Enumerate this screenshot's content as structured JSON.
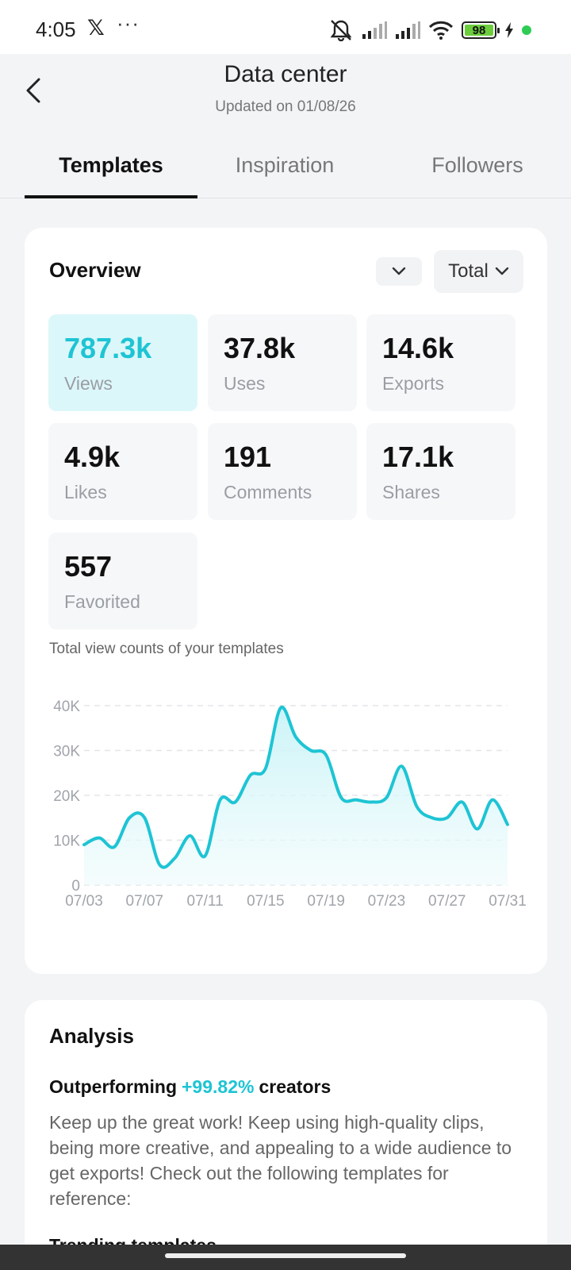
{
  "status_bar": {
    "time": "4:05",
    "x_logo": "𝕏",
    "more": "···",
    "battery_level": "98",
    "icons": [
      "mute-icon",
      "signal-icon",
      "signal-icon",
      "wifi-icon",
      "battery-icon",
      "charging-icon"
    ]
  },
  "header": {
    "title": "Data center",
    "subtitle": "Updated on 01/08/26"
  },
  "tabs": [
    {
      "label": "Templates",
      "active": true
    },
    {
      "label": "Inspiration",
      "active": false
    },
    {
      "label": "Followers",
      "active": false
    }
  ],
  "overview": {
    "title": "Overview",
    "filter_total": "Total",
    "metrics": [
      {
        "value": "787.3k",
        "label": "Views",
        "active": true
      },
      {
        "value": "37.8k",
        "label": "Uses",
        "active": false
      },
      {
        "value": "14.6k",
        "label": "Exports",
        "active": false
      },
      {
        "value": "4.9k",
        "label": "Likes",
        "active": false
      },
      {
        "value": "191",
        "label": "Comments",
        "active": false
      },
      {
        "value": "17.1k",
        "label": "Shares",
        "active": false
      },
      {
        "value": "557",
        "label": "Favorited",
        "active": false
      }
    ],
    "chart_caption": "Total view counts of your templates"
  },
  "chart_data": {
    "type": "area",
    "title": "",
    "xlabel": "",
    "ylabel": "",
    "ylim": [
      0,
      40000
    ],
    "y_ticks": [
      "0",
      "10K",
      "20K",
      "30K",
      "40K"
    ],
    "y_tick_values": [
      0,
      10000,
      20000,
      30000,
      40000
    ],
    "x_ticks": [
      "07/03",
      "07/07",
      "07/11",
      "07/15",
      "07/19",
      "07/23",
      "07/27",
      "07/31"
    ],
    "grid": true,
    "color": "#1ec4d4",
    "series": [
      {
        "x": [
          "07/03",
          "07/04",
          "07/05",
          "07/06",
          "07/07",
          "07/08",
          "07/09",
          "07/10",
          "07/11",
          "07/12",
          "07/13",
          "07/14",
          "07/15",
          "07/16",
          "07/17",
          "07/18",
          "07/19",
          "07/20",
          "07/21",
          "07/22",
          "07/23",
          "07/24",
          "07/25",
          "07/26",
          "07/27",
          "07/28",
          "07/29",
          "07/30",
          "07/31"
        ],
        "values": [
          9000,
          10500,
          8500,
          15000,
          15000,
          4500,
          6000,
          11000,
          6500,
          19000,
          18500,
          24500,
          26000,
          39500,
          33000,
          30000,
          29000,
          19500,
          19000,
          18500,
          19500,
          26500,
          17500,
          15000,
          15000,
          18500,
          12500,
          19000,
          13500
        ]
      }
    ]
  },
  "analysis": {
    "title": "Analysis",
    "outperform_prefix": "Outperforming",
    "outperform_pct": "+99.82%",
    "outperform_suffix": "creators",
    "body": "Keep up the great work! Keep using high-quality clips, being more creative, and appealing to a wide audience to get exports! Check out the following templates for reference:",
    "next_heading": "Trending templates"
  }
}
